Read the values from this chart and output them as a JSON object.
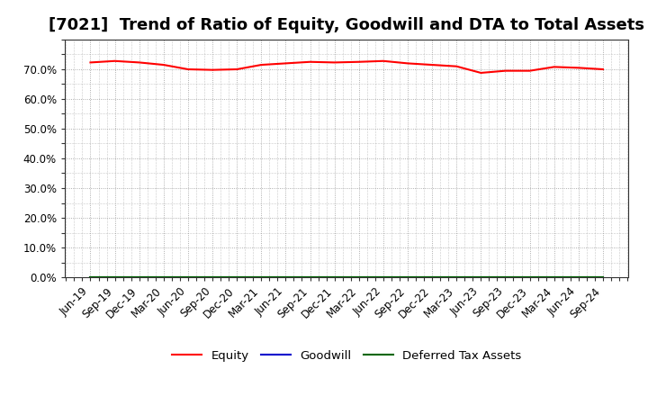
{
  "title": "[7021]  Trend of Ratio of Equity, Goodwill and DTA to Total Assets",
  "xlabels": [
    "Jun-19",
    "Sep-19",
    "Dec-19",
    "Mar-20",
    "Jun-20",
    "Sep-20",
    "Dec-20",
    "Mar-21",
    "Jun-21",
    "Sep-21",
    "Dec-21",
    "Mar-22",
    "Jun-22",
    "Sep-22",
    "Dec-22",
    "Mar-23",
    "Jun-23",
    "Sep-23",
    "Dec-23",
    "Mar-24",
    "Jun-24",
    "Sep-24"
  ],
  "equity": [
    72.3,
    72.8,
    72.3,
    71.5,
    70.0,
    69.8,
    70.0,
    71.5,
    72.0,
    72.5,
    72.3,
    72.5,
    72.8,
    72.0,
    71.5,
    71.0,
    68.8,
    69.5,
    69.5,
    70.8,
    70.5,
    70.0
  ],
  "goodwill": [
    0.0,
    0.0,
    0.0,
    0.0,
    0.0,
    0.0,
    0.0,
    0.0,
    0.0,
    0.0,
    0.0,
    0.0,
    0.0,
    0.0,
    0.0,
    0.0,
    0.0,
    0.0,
    0.0,
    0.0,
    0.0,
    0.0
  ],
  "dta": [
    0.0,
    0.0,
    0.0,
    0.0,
    0.0,
    0.0,
    0.0,
    0.0,
    0.0,
    0.0,
    0.0,
    0.0,
    0.0,
    0.0,
    0.0,
    0.0,
    0.0,
    0.0,
    0.0,
    0.0,
    0.0,
    0.0
  ],
  "equity_color": "#FF0000",
  "goodwill_color": "#0000CC",
  "dta_color": "#006600",
  "background_color": "#FFFFFF",
  "grid_color": "#999999",
  "ylim": [
    0,
    80
  ],
  "yticks": [
    0.0,
    10.0,
    20.0,
    30.0,
    40.0,
    50.0,
    60.0,
    70.0
  ],
  "legend_labels": [
    "Equity",
    "Goodwill",
    "Deferred Tax Assets"
  ],
  "line_width": 1.5,
  "title_fontsize": 13,
  "tick_fontsize": 8.5,
  "legend_fontsize": 9.5
}
